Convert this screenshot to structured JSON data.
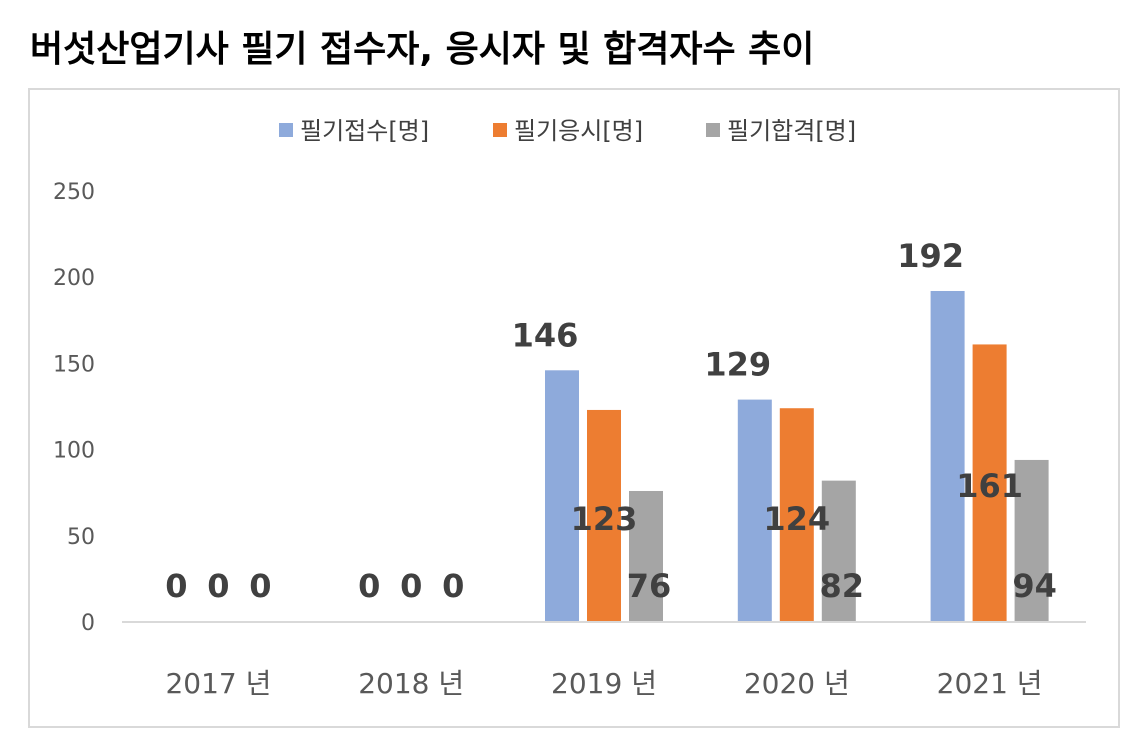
{
  "title": "버섯산업기사 필기 접수자, 응시자 및 합격자수 추이",
  "colors": {
    "series": [
      "#8eaadb",
      "#ed7d31",
      "#a5a5a5"
    ],
    "axis": "#d9d9d9",
    "text": "#595959",
    "label": "#404040"
  },
  "chart_data": {
    "type": "bar",
    "categories": [
      "2017 년",
      "2018 년",
      "2019 년",
      "2020 년",
      "2021 년"
    ],
    "series": [
      {
        "name": "필기접수[명]",
        "values": [
          0,
          0,
          146,
          129,
          192
        ]
      },
      {
        "name": "필기응시[명]",
        "values": [
          0,
          0,
          123,
          124,
          161
        ]
      },
      {
        "name": "필기합격[명]",
        "values": [
          0,
          0,
          76,
          82,
          94
        ]
      }
    ],
    "ylim": [
      0,
      250
    ],
    "yticks": [
      0,
      50,
      100,
      150,
      200,
      250
    ],
    "grid": false,
    "legend_position": "top"
  }
}
